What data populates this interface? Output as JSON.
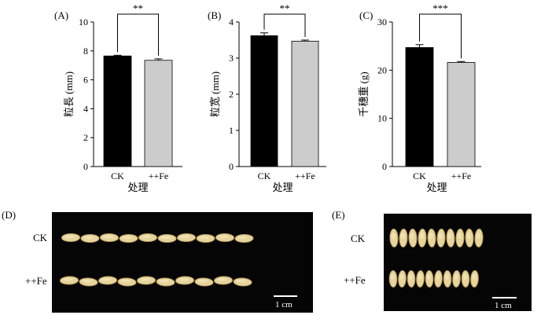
{
  "panels": {
    "A": "(A)",
    "B": "(B)",
    "C": "(C)",
    "D": "(D)",
    "E": "(E)"
  },
  "chart_data": [
    {
      "type": "bar",
      "panel": "(A)",
      "categories": [
        "CK",
        "++Fe"
      ],
      "values": [
        7.65,
        7.35
      ],
      "errors": [
        0.05,
        0.1
      ],
      "ylabel": "粒長 (mm)",
      "xlabel": "处理",
      "ylim": [
        0,
        10
      ],
      "yticks": [
        0,
        2,
        4,
        6,
        8,
        10
      ],
      "significance": "**",
      "bar_colors": [
        "#000000",
        "#cccccc"
      ]
    },
    {
      "type": "bar",
      "panel": "(B)",
      "categories": [
        "CK",
        "++Fe"
      ],
      "values": [
        3.62,
        3.47
      ],
      "errors": [
        0.08,
        0.03
      ],
      "ylabel": "粒宽 (mm)",
      "xlabel": "处理",
      "ylim": [
        0,
        4
      ],
      "yticks": [
        0,
        1,
        2,
        3,
        4
      ],
      "significance": "**",
      "bar_colors": [
        "#000000",
        "#cccccc"
      ]
    },
    {
      "type": "bar",
      "panel": "(C)",
      "categories": [
        "CK",
        "++Fe"
      ],
      "values": [
        24.7,
        21.6
      ],
      "errors": [
        0.6,
        0.2
      ],
      "ylabel": "千穗重 (g)",
      "xlabel": "处理",
      "ylim": [
        0,
        30
      ],
      "yticks": [
        0,
        10,
        20,
        30
      ],
      "significance": "***",
      "bar_colors": [
        "#000000",
        "#cccccc"
      ]
    }
  ],
  "photos": {
    "D": {
      "row_labels": [
        "CK",
        "++Fe"
      ],
      "scale": "1 cm",
      "grain_counts": [
        10,
        10
      ]
    },
    "E": {
      "row_labels": [
        "CK",
        "++Fe"
      ],
      "scale": "1 cm",
      "grain_counts": [
        10,
        10
      ]
    }
  },
  "colors": {
    "grain": "#e6d49c",
    "grain_dark": "#b79b5a",
    "photo_bg": "#050505"
  }
}
